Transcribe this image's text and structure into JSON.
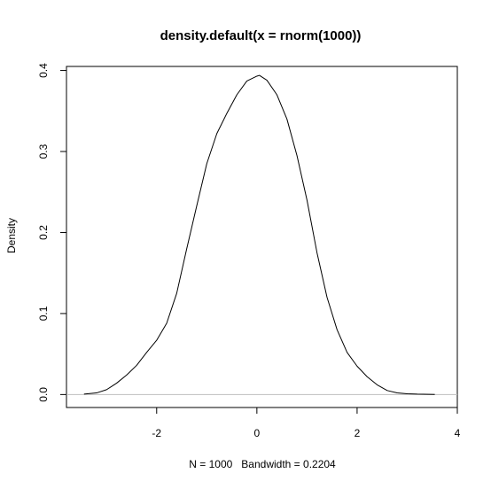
{
  "chart_data": {
    "type": "line",
    "title": "density.default(x = rnorm(1000))",
    "xlabel": "N = 1000   Bandwidth = 0.2204",
    "ylabel": "Density",
    "xlim": [
      -3.8,
      4.0
    ],
    "ylim": [
      -0.016,
      0.405
    ],
    "x_ticks": [
      -2,
      0,
      2,
      4
    ],
    "x_tick_labels": [
      "-2",
      "0",
      "2",
      "4"
    ],
    "y_ticks": [
      0.0,
      0.1,
      0.2,
      0.3,
      0.4
    ],
    "y_tick_labels": [
      "0.0",
      "0.1",
      "0.2",
      "0.3",
      "0.4"
    ],
    "grid": false,
    "zero_line": true,
    "colors": {
      "line": "#000000",
      "zero_line": "#bebebe",
      "frame": "#000000"
    },
    "series": [
      {
        "x": [
          -3.45,
          -3.2,
          -3.0,
          -2.8,
          -2.6,
          -2.4,
          -2.2,
          -2.0,
          -1.8,
          -1.6,
          -1.4,
          -1.2,
          -1.0,
          -0.8,
          -0.6,
          -0.4,
          -0.2,
          0.0,
          0.05,
          0.2,
          0.4,
          0.6,
          0.8,
          1.0,
          1.2,
          1.4,
          1.6,
          1.8,
          2.0,
          2.2,
          2.4,
          2.6,
          2.8,
          3.0,
          3.2,
          3.55
        ],
        "y": [
          0.0005,
          0.002,
          0.006,
          0.014,
          0.024,
          0.036,
          0.052,
          0.067,
          0.088,
          0.125,
          0.18,
          0.233,
          0.285,
          0.322,
          0.347,
          0.37,
          0.387,
          0.393,
          0.394,
          0.388,
          0.37,
          0.34,
          0.295,
          0.24,
          0.175,
          0.12,
          0.08,
          0.052,
          0.035,
          0.022,
          0.012,
          0.005,
          0.002,
          0.001,
          0.0005,
          0.0002
        ]
      }
    ]
  }
}
